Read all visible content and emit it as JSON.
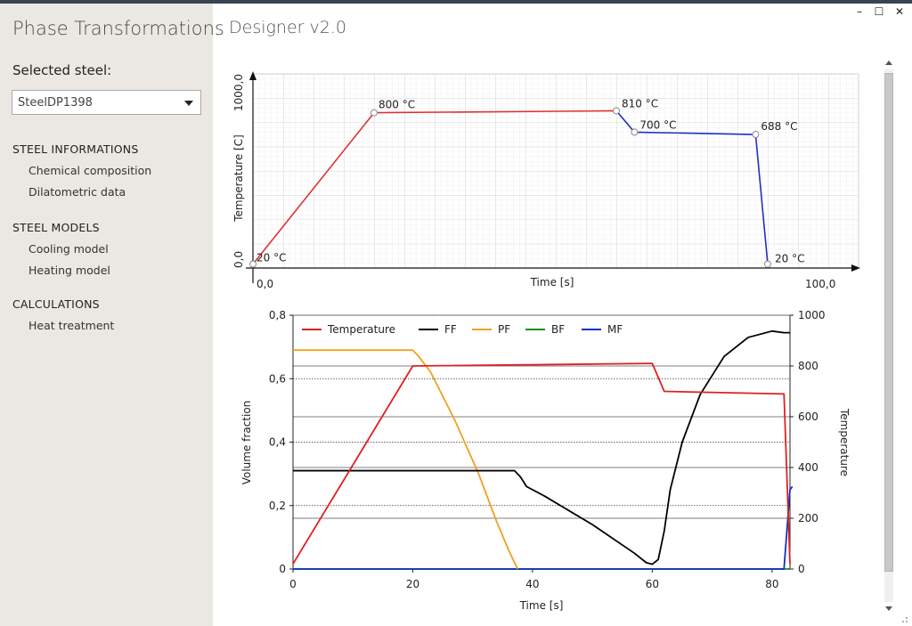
{
  "app": {
    "title": "Phase Transformations",
    "designer_title": "Designer v2.0"
  },
  "window": {
    "minimize": "–",
    "maximize": "☐",
    "close": "✕"
  },
  "sidebar": {
    "selected_label": "Selected steel:",
    "selected_value": "SteelDP1398",
    "sections": [
      {
        "title": "STEEL INFORMATIONS",
        "items": [
          "Chemical composition",
          "Dilatometric data"
        ]
      },
      {
        "title": "STEEL MODELS",
        "items": [
          "Cooling model",
          "Heating model"
        ]
      },
      {
        "title": "CALCULATIONS",
        "items": [
          "Heat treatment"
        ]
      }
    ]
  },
  "designer_chart": {
    "ylabel": "Temperature [C]",
    "xlabel": "Time [s]",
    "y_top_label": "1000,0",
    "y_bottom_label": "0,0",
    "x_left_label": "0,0",
    "x_right_label": "100,0",
    "point_labels": [
      "20 °C",
      "800 °C",
      "810 °C",
      "700 °C",
      "688 °C",
      "20 °C"
    ]
  },
  "chart_data": [
    {
      "type": "line",
      "xlabel": "Time [s]",
      "ylabel": "Temperature [C]",
      "xlim": [
        0,
        100
      ],
      "ylim": [
        0,
        1000
      ],
      "grid": true,
      "series": [
        {
          "name": "",
          "color": "#e03030",
          "x": [
            0,
            20,
            60
          ],
          "y": [
            20,
            800,
            810
          ]
        },
        {
          "name": "",
          "color": "#2030c0",
          "x": [
            60,
            63,
            83,
            85
          ],
          "y": [
            810,
            700,
            688,
            20
          ]
        }
      ]
    },
    {
      "type": "line",
      "xlabel": "Time [s]",
      "ylabel": "Volume fraction",
      "y2label": "Temperature",
      "xlim": [
        0,
        83
      ],
      "ylim": [
        0,
        0.8
      ],
      "y2lim": [
        0,
        1000
      ],
      "xticks": [
        "0",
        "20",
        "40",
        "60",
        "80"
      ],
      "yticks": [
        "0",
        "0,2",
        "0,4",
        "0,6",
        "0,8"
      ],
      "y2ticks": [
        "0",
        "200",
        "400",
        "600",
        "800",
        "1000"
      ],
      "legend": "top",
      "series": [
        {
          "name": "Temperature",
          "color": "#e02020",
          "axis": "right",
          "x": [
            0,
            20,
            60,
            62,
            82,
            83
          ],
          "y": [
            20,
            800,
            810,
            700,
            690,
            20
          ]
        },
        {
          "name": "FF",
          "color": "#000000",
          "axis": "left",
          "x": [
            0,
            20,
            37,
            38,
            39,
            42,
            50,
            57,
            59,
            60,
            61,
            62,
            63,
            65,
            68,
            72,
            76,
            80,
            82,
            83
          ],
          "y": [
            0.31,
            0.31,
            0.31,
            0.29,
            0.26,
            0.23,
            0.14,
            0.05,
            0.02,
            0.015,
            0.03,
            0.12,
            0.25,
            0.4,
            0.55,
            0.67,
            0.73,
            0.75,
            0.745,
            0.745
          ]
        },
        {
          "name": "PF",
          "color": "#f0a020",
          "axis": "left",
          "x": [
            0,
            20,
            21,
            23,
            27,
            31,
            34,
            36,
            37.5
          ],
          "y": [
            0.69,
            0.69,
            0.67,
            0.62,
            0.47,
            0.3,
            0.15,
            0.06,
            0.0
          ]
        },
        {
          "name": "BF",
          "color": "#109010",
          "axis": "left",
          "x": [
            0,
            83
          ],
          "y": [
            0.0,
            0.0
          ]
        },
        {
          "name": "MF",
          "color": "#1030c0",
          "axis": "left",
          "x": [
            0,
            82,
            82.6,
            83,
            83.4
          ],
          "y": [
            0.0,
            0.0,
            0.15,
            0.25,
            0.26
          ]
        }
      ]
    }
  ]
}
